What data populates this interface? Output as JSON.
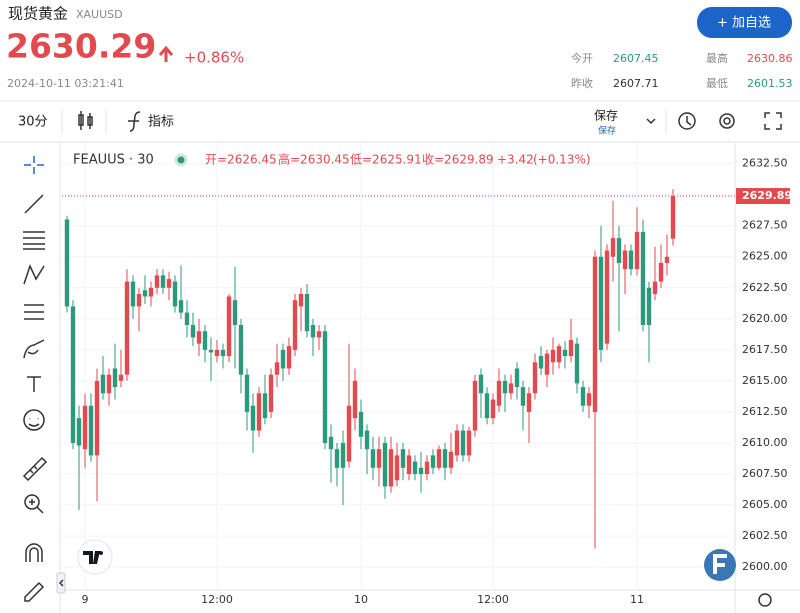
{
  "header": {
    "title": "现货黄金",
    "symbol": "XAUUSD",
    "price": "2630.29",
    "change": "+0.86%",
    "time": "2024-10-11 03:21:41",
    "button": "+ 加自选",
    "stats": [
      {
        "label": "今开",
        "value": "2607.45"
      },
      {
        "label": "最高",
        "value": "2630.86"
      },
      {
        "label": "昨收",
        "value": "2607.71"
      },
      {
        "label": "最低",
        "value": "2601.53"
      }
    ]
  },
  "toolbar": {
    "interval": "30分",
    "indicators": "指标",
    "save": "保存",
    "save_sub": "保存"
  },
  "chart_data": {
    "type": "candlestick",
    "title": "FEAUUS · 30",
    "legend_values": [
      "开=2626.45",
      "高=2630.45",
      "低=2625.91",
      "收=2629.89",
      "+3.42",
      "(+0.13%)"
    ],
    "up_color": "#e34a4f",
    "down_color": "#2b9a7c",
    "grid": true,
    "ylim": [
      2598.4,
      2634
    ],
    "yticks": [
      {
        "value": 2600,
        "label": "2600.00"
      },
      {
        "value": 2602.5,
        "label": "2602.50"
      },
      {
        "value": 2605,
        "label": "2605.00"
      },
      {
        "value": 2607.5,
        "label": "2607.50"
      },
      {
        "value": 2610,
        "label": "2610.00"
      },
      {
        "value": 2612.5,
        "label": "2612.50"
      },
      {
        "value": 2615,
        "label": "2615.00"
      },
      {
        "value": 2617.5,
        "label": "2617.50"
      },
      {
        "value": 2620,
        "label": "2620.00"
      },
      {
        "value": 2622.5,
        "label": "2622.50"
      },
      {
        "value": 2625,
        "label": "2625.00"
      },
      {
        "value": 2627.5,
        "label": "2627.50"
      },
      {
        "value": 2630,
        "label": "2630.00"
      },
      {
        "value": 2632.5,
        "label": "2632.50"
      }
    ],
    "xticks": [
      {
        "value": 3,
        "label": "9"
      },
      {
        "value": 25,
        "label": "12:00"
      },
      {
        "value": 49,
        "label": "10"
      },
      {
        "value": 71,
        "label": "12:00"
      },
      {
        "value": 95,
        "label": "11"
      }
    ],
    "open": [
      2628,
      2621,
      2612,
      2609.5,
      2613,
      2609,
      2615.5,
      2614,
      2616,
      2615,
      2615.5,
      2623,
      2621,
      2622.3,
      2621.8,
      2622.5,
      2623.5,
      2622.5,
      2623,
      2621.5,
      2620.5,
      2619.5,
      2618,
      2619,
      2617.5,
      2617,
      2617.5,
      2617,
      2621.5,
      2619.5,
      2615.5,
      2613,
      2611,
      2614,
      2612.5,
      2615.5,
      2617.5,
      2616,
      2617.5,
      2621,
      2622,
      2619.5,
      2618.5,
      2619,
      2610.5,
      2609.5,
      2610,
      2608.5,
      2612,
      2612.5,
      2611,
      2609.5,
      2608,
      2610,
      2606.5,
      2607,
      2609.5,
      2607.5,
      2608.5,
      2608,
      2607.5,
      2609,
      2608,
      2609.5,
      2608,
      2609,
      2611,
      2609,
      2611,
      2615.5,
      2614,
      2612,
      2613,
      2615,
      2614,
      2616,
      2614.5,
      2612.5,
      2614,
      2617,
      2615.5,
      2616.5,
      2616.5,
      2617.5,
      2617,
      2618,
      2614.5,
      2613,
      2612.5,
      2625,
      2618,
      2625,
      2626.5,
      2624,
      2625.5,
      2624,
      2627,
      2622.5,
      2622,
      2623,
      2624.5,
      2626.45
    ],
    "high": [
      2628.3,
      2621.5,
      2613,
      2614,
      2614,
      2616,
      2617,
      2616,
      2618,
      2617.5,
      2624,
      2623.5,
      2622.5,
      2623.5,
      2623,
      2624,
      2624,
      2623.8,
      2623.5,
      2624.3,
      2621.5,
      2620.5,
      2620,
      2619.5,
      2618.5,
      2618.3,
      2618,
      2622,
      2624.2,
      2620,
      2616,
      2614,
      2614.5,
      2615.5,
      2616,
      2618,
      2618,
      2618.5,
      2622,
      2622.5,
      2622.8,
      2620,
      2619.5,
      2619.5,
      2611.5,
      2610,
      2611,
      2618,
      2616,
      2613.5,
      2611.5,
      2610.5,
      2610.5,
      2610.5,
      2610.5,
      2610,
      2610,
      2609.5,
      2609,
      2609.3,
      2609,
      2609.5,
      2609.8,
      2610,
      2610.8,
      2611.5,
      2611.5,
      2611.3,
      2615.5,
      2616,
      2614.5,
      2614,
      2616,
      2615.5,
      2615.5,
      2616.5,
      2615,
      2614.5,
      2617.2,
      2617.8,
      2617.5,
      2618.5,
      2618,
      2618.2,
      2620,
      2618.5,
      2615,
      2614.5,
      2625.5,
      2627.5,
      2626,
      2629.5,
      2627.5,
      2626,
      2626,
      2629,
      2628,
      2623,
      2625.8,
      2626,
      2626.8,
      2630.45
    ],
    "low": [
      2620.5,
      2609.5,
      2604.6,
      2608,
      2608.5,
      2605.3,
      2613.5,
      2613,
      2613.5,
      2614.5,
      2615,
      2620,
      2619,
      2621.2,
      2621,
      2622,
      2622,
      2621.5,
      2620.5,
      2620,
      2618.5,
      2617.8,
      2617,
      2616.5,
      2615,
      2616.5,
      2616,
      2616.5,
      2616,
      2614,
      2611,
      2609.2,
      2610.5,
      2611.5,
      2612,
      2614.5,
      2615,
      2615.5,
      2617,
      2619,
      2618.5,
      2617,
      2617.5,
      2609.5,
      2606.8,
      2606.5,
      2605,
      2608,
      2611,
      2609.5,
      2607.5,
      2607,
      2606.5,
      2605.5,
      2606,
      2606.5,
      2607,
      2607,
      2607,
      2606,
      2607,
      2607.5,
      2607.8,
      2607,
      2607.5,
      2608.5,
      2608.5,
      2608.5,
      2610.5,
      2612,
      2611.5,
      2611.5,
      2612.5,
      2612.5,
      2613.5,
      2613.5,
      2611,
      2610,
      2613.5,
      2615.5,
      2614.5,
      2615.5,
      2616,
      2616,
      2616.5,
      2614,
      2612.5,
      2612,
      2601.5,
      2616.5,
      2617.5,
      2623,
      2619,
      2622,
      2623.5,
      2623.5,
      2619,
      2616.5,
      2621.5,
      2622.5,
      2623.5,
      2625.91
    ],
    "close": [
      2621,
      2610,
      2609.8,
      2613,
      2609,
      2615,
      2614,
      2615.5,
      2614.5,
      2615.5,
      2623,
      2621,
      2622,
      2621.8,
      2622.5,
      2623.5,
      2622.5,
      2623.2,
      2621,
      2620.5,
      2619.5,
      2618.5,
      2619,
      2617.5,
      2617.3,
      2617.5,
      2617,
      2621.8,
      2619.5,
      2615.5,
      2612.5,
      2611,
      2614,
      2612,
      2615.5,
      2616.5,
      2616,
      2617.8,
      2621.5,
      2622,
      2619,
      2618.5,
      2619,
      2610,
      2609.5,
      2608,
      2608,
      2613,
      2615,
      2610.5,
      2609.5,
      2608,
      2609.5,
      2606.5,
      2609.5,
      2609,
      2608,
      2609,
      2607.5,
      2607.5,
      2608.5,
      2608,
      2609.5,
      2608,
      2609.3,
      2611,
      2609,
      2611,
      2615,
      2614,
      2612,
      2613.5,
      2615,
      2614,
      2614.8,
      2614.5,
      2613,
      2614,
      2616.5,
      2616,
      2617.2,
      2617.5,
      2617.8,
      2617,
      2618.3,
      2614.8,
      2613,
      2614,
      2625,
      2617.5,
      2625.5,
      2626.5,
      2624.5,
      2625.5,
      2624,
      2627,
      2619.5,
      2619.5,
      2623,
      2624.5,
      2625,
      2629.89
    ]
  }
}
